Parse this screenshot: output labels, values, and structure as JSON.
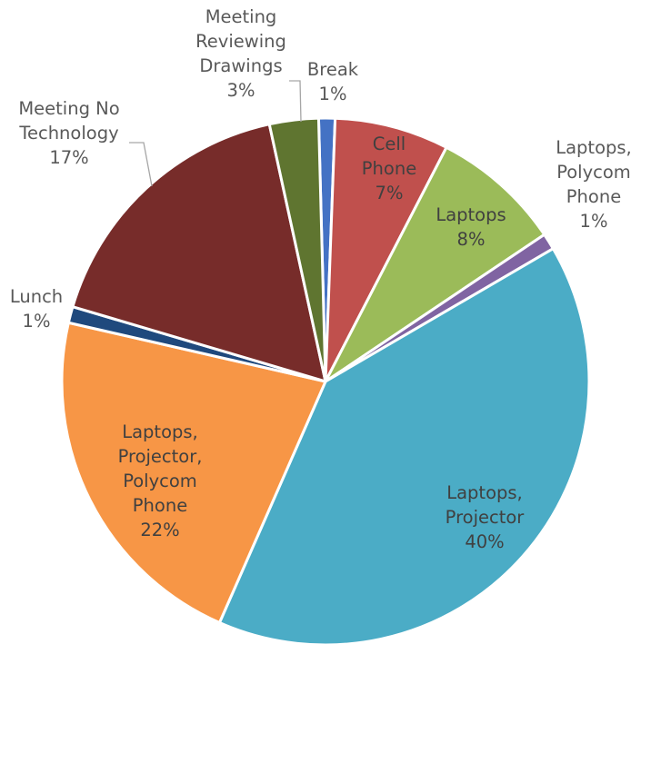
{
  "chart_data": {
    "type": "pie",
    "title": "",
    "slices": [
      {
        "label": [
          "Break"
        ],
        "percent_label": "1%",
        "value": 1,
        "color": "#4472C4"
      },
      {
        "label": [
          "Cell",
          "Phone"
        ],
        "percent_label": "7%",
        "value": 7,
        "color": "#C0504D"
      },
      {
        "label": [
          "Laptops"
        ],
        "percent_label": "8%",
        "value": 8,
        "color": "#9BBB59"
      },
      {
        "label": [
          "Laptops,",
          "Polycom",
          "Phone"
        ],
        "percent_label": "1%",
        "value": 1,
        "color": "#8064A2"
      },
      {
        "label": [
          "Laptops,",
          "Projector"
        ],
        "percent_label": "40%",
        "value": 40,
        "color": "#4BACC6"
      },
      {
        "label": [
          "Laptops,",
          "Projector,",
          "Polycom",
          "Phone"
        ],
        "percent_label": "22%",
        "value": 22,
        "color": "#F79646"
      },
      {
        "label": [
          "Lunch"
        ],
        "percent_label": "1%",
        "value": 1,
        "color": "#1F497D"
      },
      {
        "label": [
          "Meeting No",
          "Technology"
        ],
        "percent_label": "17%",
        "value": 17,
        "color": "#772C2A"
      },
      {
        "label": [
          "Meeting",
          "Reviewing",
          "Drawings"
        ],
        "percent_label": "3%",
        "value": 3,
        "color": "#5F7530"
      }
    ]
  }
}
